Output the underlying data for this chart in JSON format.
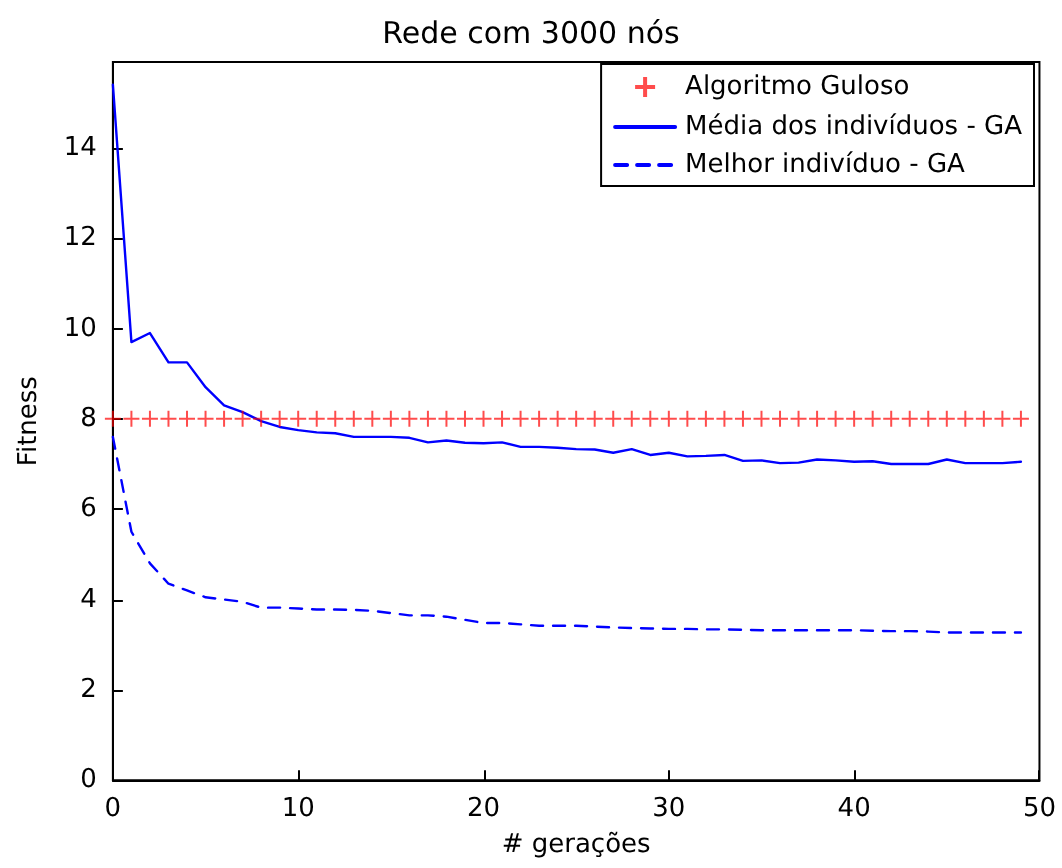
{
  "chart_data": {
    "type": "line",
    "title": "Rede com 3000 nós",
    "xlabel": "# gerações",
    "ylabel": "Fitness",
    "xlim": [
      0,
      50
    ],
    "xticks": [
      0,
      10,
      20,
      30,
      40,
      50
    ],
    "ylim": [
      0,
      15.9
    ],
    "yticks": [
      0,
      2,
      4,
      6,
      8,
      10,
      12,
      14
    ],
    "grid": false,
    "legend": "top right",
    "x": [
      0,
      1,
      2,
      3,
      4,
      5,
      6,
      7,
      8,
      9,
      10,
      11,
      12,
      13,
      14,
      15,
      16,
      17,
      18,
      19,
      20,
      21,
      22,
      23,
      24,
      25,
      26,
      27,
      28,
      29,
      30,
      31,
      32,
      33,
      34,
      35,
      36,
      37,
      38,
      39,
      40,
      41,
      42,
      43,
      44,
      45,
      46,
      47,
      48,
      49
    ],
    "series": [
      {
        "name": "Algoritmo Guloso",
        "type": "scatter",
        "marker": "cross",
        "color": "#ff0000",
        "values": [
          8,
          8,
          8,
          8,
          8,
          8,
          8,
          8,
          8,
          8,
          8,
          8,
          8,
          8,
          8,
          8,
          8,
          8,
          8,
          8,
          8,
          8,
          8,
          8,
          8,
          8,
          8,
          8,
          8,
          8,
          8,
          8,
          8,
          8,
          8,
          8,
          8,
          8,
          8,
          8,
          8,
          8,
          8,
          8,
          8,
          8,
          8,
          8,
          8,
          8
        ]
      },
      {
        "name": "Média dos indivíduos - GA",
        "line_style": "solid",
        "color": "#0000ff",
        "values": [
          15.4,
          9.7,
          9.9,
          9.25,
          9.25,
          8.7,
          8.3,
          8.15,
          7.95,
          7.82,
          7.75,
          7.7,
          7.68,
          7.6,
          7.6,
          7.6,
          7.58,
          7.48,
          7.52,
          7.47,
          7.46,
          7.48,
          7.38,
          7.38,
          7.36,
          7.33,
          7.32,
          7.25,
          7.33,
          7.2,
          7.25,
          7.17,
          7.18,
          7.2,
          7.07,
          7.08,
          7.02,
          7.03,
          7.1,
          7.08,
          7.05,
          7.06,
          7.0,
          7.0,
          7.0,
          7.1,
          7.02,
          7.02,
          7.02,
          7.05
        ]
      },
      {
        "name": "Melhor indivíduo - GA",
        "line_style": "dashed",
        "color": "#0000ff",
        "values": [
          7.6,
          5.5,
          4.8,
          4.35,
          4.2,
          4.05,
          4.0,
          3.95,
          3.82,
          3.82,
          3.8,
          3.78,
          3.78,
          3.77,
          3.75,
          3.7,
          3.65,
          3.65,
          3.62,
          3.55,
          3.48,
          3.48,
          3.45,
          3.42,
          3.42,
          3.42,
          3.4,
          3.38,
          3.37,
          3.36,
          3.35,
          3.35,
          3.34,
          3.34,
          3.33,
          3.32,
          3.32,
          3.32,
          3.32,
          3.32,
          3.32,
          3.31,
          3.3,
          3.3,
          3.29,
          3.27,
          3.27,
          3.27,
          3.27,
          3.27
        ]
      }
    ]
  }
}
